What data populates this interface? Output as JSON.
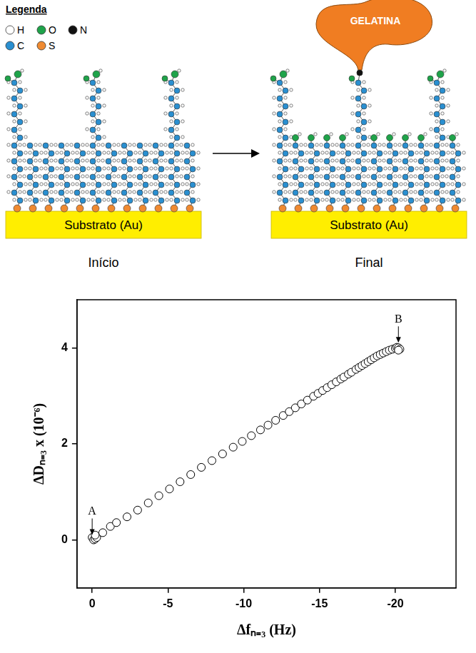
{
  "diagram": {
    "legend": {
      "title": "Legenda",
      "items": [
        {
          "label": "H",
          "color": "#ffffff"
        },
        {
          "label": "O",
          "color": "#1fa34a"
        },
        {
          "label": "N",
          "color": "#111111"
        },
        {
          "label": "C",
          "color": "#2a8fd0"
        },
        {
          "label": "S",
          "color": "#f08a30"
        }
      ]
    },
    "panels": [
      {
        "caption": "Início",
        "substrate": "Substrato (Au)"
      },
      {
        "caption": "Final",
        "substrate": "Substrato (Au)",
        "attached": "GELATINA"
      }
    ]
  },
  "chart_data": {
    "type": "scatter",
    "x_label": "Δfₙ₌₃ (Hz)",
    "y_label": "ΔDₙ₌₃ x (10⁻⁶)",
    "x": [
      0,
      -0.1,
      -0.2,
      -0.3,
      -0.2,
      -0.7,
      -1.2,
      -1.6,
      -2.3,
      -3.0,
      -3.7,
      -4.4,
      -5.1,
      -5.8,
      -6.5,
      -7.2,
      -7.9,
      -8.6,
      -9.3,
      -9.9,
      -10.5,
      -11.1,
      -11.6,
      -12.1,
      -12.6,
      -13.0,
      -13.4,
      -13.8,
      -14.2,
      -14.6,
      -14.9,
      -15.2,
      -15.5,
      -15.8,
      -16.1,
      -16.4,
      -16.6,
      -16.9,
      -17.1,
      -17.4,
      -17.6,
      -17.8,
      -18.0,
      -18.2,
      -18.4,
      -18.6,
      -18.8,
      -19.0,
      -19.2,
      -19.4,
      -19.6,
      -19.8,
      -20.0,
      -20.1,
      -20.2,
      -20.3,
      -20.2
    ],
    "values": [
      0.05,
      0.0,
      0.02,
      0.05,
      0.1,
      0.15,
      0.28,
      0.36,
      0.48,
      0.62,
      0.77,
      0.92,
      1.06,
      1.21,
      1.36,
      1.51,
      1.65,
      1.79,
      1.93,
      2.05,
      2.17,
      2.29,
      2.39,
      2.49,
      2.59,
      2.67,
      2.75,
      2.83,
      2.91,
      2.99,
      3.05,
      3.11,
      3.17,
      3.23,
      3.29,
      3.35,
      3.39,
      3.45,
      3.49,
      3.55,
      3.59,
      3.63,
      3.67,
      3.71,
      3.75,
      3.79,
      3.83,
      3.86,
      3.89,
      3.92,
      3.95,
      3.97,
      3.99,
      4.01,
      4.0,
      3.97,
      3.95
    ],
    "color": "#000000",
    "marker": "circle_open",
    "xlim": [
      1,
      -24
    ],
    "xticks": [
      0,
      -5,
      -10,
      -15,
      -20
    ],
    "ylim": [
      -1,
      5
    ],
    "yticks": [
      0,
      2,
      4
    ],
    "grid": false,
    "annotations": [
      {
        "text": "A",
        "x": 0,
        "y": 0
      },
      {
        "text": "B",
        "x": -20.2,
        "y": 4.0
      }
    ]
  }
}
